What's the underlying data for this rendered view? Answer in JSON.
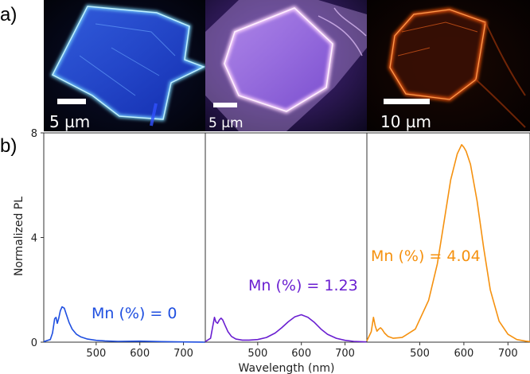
{
  "panel_labels": {
    "a": "a)",
    "b": "b)"
  },
  "micrographs": [
    {
      "scale_label": "5 µm",
      "emission_color": "#2f5bff"
    },
    {
      "scale_label": "5 µm",
      "emission_color": "#d9a8ff"
    },
    {
      "scale_label": "10 µm",
      "emission_color": "#ff6a1f"
    }
  ],
  "chart_data": {
    "type": "line",
    "xlabel": "Wavelength (nm)",
    "ylabel": "Normalized PL",
    "xlim": [
      380,
      750
    ],
    "ylim": [
      0,
      8
    ],
    "xticks": [
      500,
      600,
      700
    ],
    "yticks": [
      0,
      4,
      8
    ],
    "panels": [
      {
        "name": "Mn (%) = 0",
        "label": "Mn (%) = 0",
        "color": "#1f4fe0",
        "x": [
          380,
          395,
          400,
          405,
          408,
          411,
          414,
          418,
          422,
          427,
          432,
          438,
          445,
          455,
          465,
          480,
          500,
          520,
          550,
          600,
          650,
          700,
          750
        ],
        "y": [
          0.02,
          0.1,
          0.35,
          0.9,
          0.95,
          0.72,
          0.9,
          1.2,
          1.35,
          1.3,
          1.05,
          0.75,
          0.5,
          0.3,
          0.2,
          0.12,
          0.07,
          0.05,
          0.03,
          0.04,
          0.02,
          0.01,
          0.0
        ]
      },
      {
        "name": "Mn (%) = 1.23",
        "label": "Mn (%) = 1.23",
        "color": "#6a1fd1",
        "x": [
          380,
          392,
          397,
          401,
          404,
          408,
          412,
          416,
          420,
          425,
          432,
          440,
          450,
          465,
          480,
          500,
          520,
          540,
          555,
          570,
          585,
          600,
          615,
          630,
          645,
          660,
          680,
          700,
          720,
          750
        ],
        "y": [
          0.02,
          0.15,
          0.6,
          0.95,
          0.78,
          0.72,
          0.85,
          0.92,
          0.85,
          0.65,
          0.4,
          0.22,
          0.12,
          0.08,
          0.08,
          0.1,
          0.18,
          0.35,
          0.55,
          0.78,
          0.97,
          1.05,
          0.95,
          0.75,
          0.5,
          0.3,
          0.15,
          0.07,
          0.03,
          0.01
        ]
      },
      {
        "name": "Mn (%) = 4.04",
        "label": "Mn (%) = 4.04",
        "color": "#f5910f",
        "x": [
          380,
          390,
          395,
          399,
          403,
          407,
          411,
          415,
          420,
          428,
          440,
          460,
          490,
          520,
          540,
          555,
          570,
          585,
          595,
          600,
          605,
          615,
          630,
          645,
          660,
          680,
          700,
          720,
          740,
          750
        ],
        "y": [
          0.05,
          0.4,
          0.95,
          0.62,
          0.42,
          0.5,
          0.55,
          0.48,
          0.35,
          0.22,
          0.15,
          0.18,
          0.5,
          1.6,
          3.0,
          4.6,
          6.2,
          7.2,
          7.55,
          7.45,
          7.3,
          6.8,
          5.4,
          3.6,
          2.0,
          0.8,
          0.3,
          0.1,
          0.04,
          0.02
        ]
      }
    ]
  }
}
